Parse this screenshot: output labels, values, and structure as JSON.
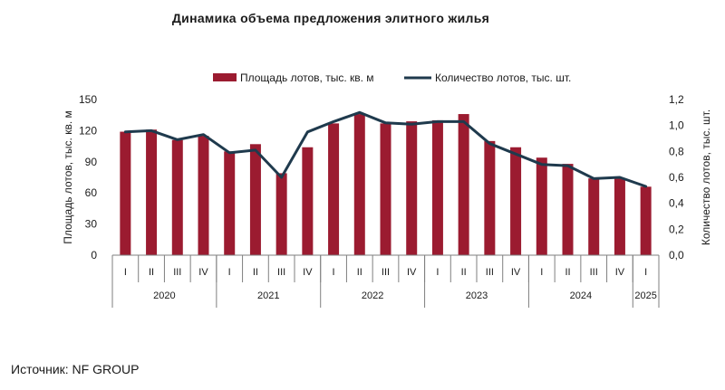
{
  "title": "Динамика объема предложения элитного жилья",
  "source": "Источник: NF GROUP",
  "colors": {
    "bars": "#9b1b30",
    "line": "#1f3a4d",
    "axis": "#7f7f7f"
  },
  "chart_data": {
    "type": "bar",
    "title": "Динамика объема предложения элитного жилья",
    "categories": [
      "I",
      "II",
      "III",
      "IV",
      "I",
      "II",
      "III",
      "IV",
      "I",
      "II",
      "III",
      "IV",
      "I",
      "II",
      "III",
      "IV",
      "I",
      "II",
      "III",
      "IV",
      "I"
    ],
    "groups": [
      {
        "label": "2020",
        "count": 4
      },
      {
        "label": "2021",
        "count": 4
      },
      {
        "label": "2022",
        "count": 4
      },
      {
        "label": "2023",
        "count": 4
      },
      {
        "label": "2024",
        "count": 4
      },
      {
        "label": "2025",
        "count": 1
      }
    ],
    "series": [
      {
        "name": "Площадь лотов, тыс. кв. м",
        "type": "bar",
        "axis": "left",
        "values": [
          119,
          121,
          111,
          115,
          100,
          107,
          79,
          104,
          127,
          136,
          127,
          129,
          130,
          136,
          110,
          104,
          94,
          88,
          74,
          74,
          66
        ]
      },
      {
        "name": "Количество лотов, тыс. шт.",
        "type": "line",
        "axis": "right",
        "values": [
          0.95,
          0.96,
          0.89,
          0.93,
          0.79,
          0.81,
          0.6,
          0.95,
          1.03,
          1.1,
          1.02,
          1.01,
          1.03,
          1.03,
          0.86,
          0.78,
          0.7,
          0.69,
          0.59,
          0.6,
          0.53
        ]
      }
    ],
    "ylabel": "Площадь лотов, тыс. кв. м",
    "y2label": "Количество лотов, тыс. шт.",
    "ylim": [
      0,
      150
    ],
    "y2lim": [
      0,
      1.2
    ],
    "yticks": [
      "0",
      "30",
      "60",
      "90",
      "120",
      "150"
    ],
    "y2ticks": [
      "0,0",
      "0,2",
      "0,4",
      "0,6",
      "0,8",
      "1,0",
      "1,2"
    ],
    "legend": "top",
    "grid": false
  }
}
